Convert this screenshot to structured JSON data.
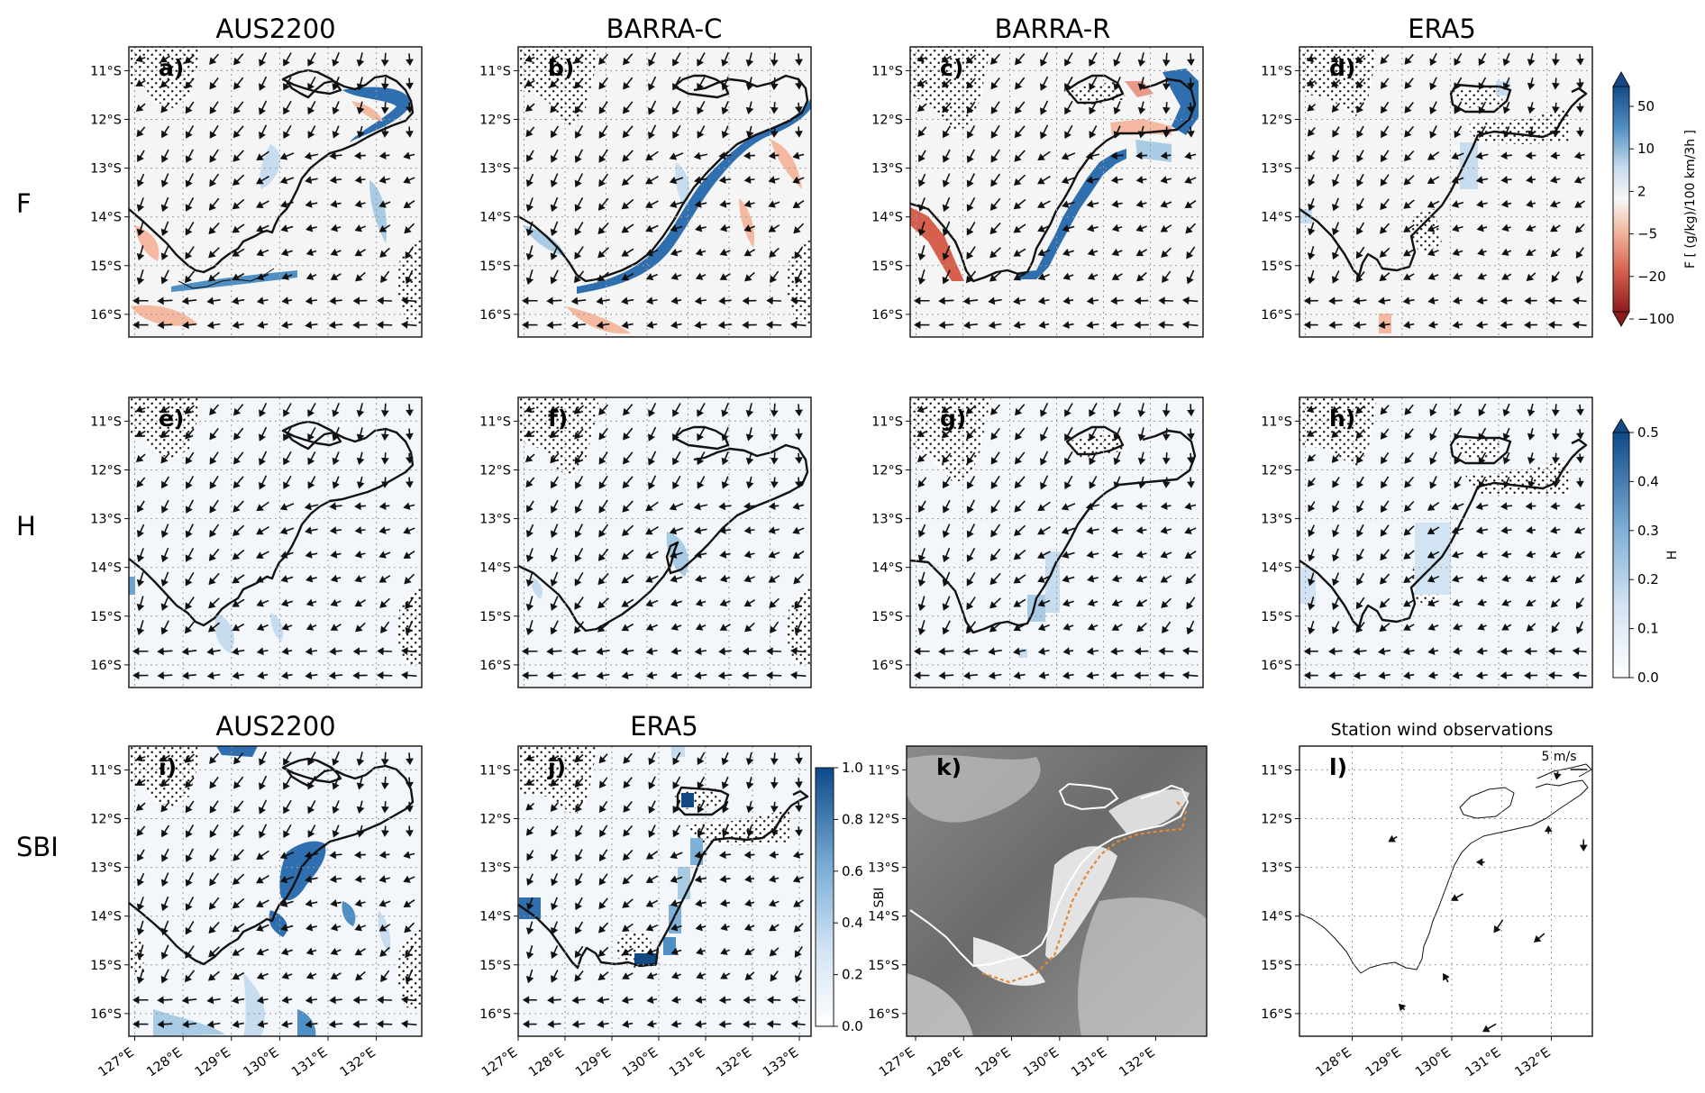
{
  "figure": {
    "row_labels": [
      "F",
      "H",
      "SBI"
    ],
    "lat_labels": [
      "11°S",
      "12°S",
      "13°S",
      "14°S",
      "15°S",
      "16°S"
    ],
    "lon_labels_a": [
      "127°E",
      "128°E",
      "129°E",
      "130°E",
      "131°E",
      "132°E"
    ],
    "lon_labels_b": [
      "127°E",
      "128°E",
      "129°E",
      "130°E",
      "131°E",
      "132°E",
      "133°E"
    ],
    "lon_labels_k": [
      "127°E",
      "128°E",
      "129°E",
      "130°E",
      "131°E",
      "132°E"
    ],
    "lon_labels_l": [
      "128°E",
      "129°E",
      "130°E",
      "131°E",
      "132°E"
    ],
    "panels": [
      {
        "id": "a",
        "letter": "a)",
        "title": "AUS2200",
        "row": "F"
      },
      {
        "id": "b",
        "letter": "b)",
        "title": "BARRA-C",
        "row": "F"
      },
      {
        "id": "c",
        "letter": "c)",
        "title": "BARRA-R",
        "row": "F"
      },
      {
        "id": "d",
        "letter": "d)",
        "title": "ERA5",
        "row": "F"
      },
      {
        "id": "e",
        "letter": "e)",
        "title": "",
        "row": "H"
      },
      {
        "id": "f",
        "letter": "f)",
        "title": "",
        "row": "H"
      },
      {
        "id": "g",
        "letter": "g)",
        "title": "",
        "row": "H"
      },
      {
        "id": "h",
        "letter": "h)",
        "title": "",
        "row": "H"
      },
      {
        "id": "i",
        "letter": "i)",
        "title": "AUS2200",
        "row": "SBI"
      },
      {
        "id": "j",
        "letter": "j)",
        "title": "ERA5",
        "row": "SBI"
      },
      {
        "id": "k",
        "letter": "k)",
        "title": "",
        "row": "SBI"
      },
      {
        "id": "l",
        "letter": "l)",
        "title": "Station wind observations",
        "row": "SBI"
      }
    ],
    "scale_arrow_label": "5 m/s",
    "colorbars": {
      "F": {
        "label": "F [ (g/kg)/100 km/3h ]",
        "ticks": [
          "50",
          "10",
          "2",
          "−5",
          "−20",
          "−100"
        ]
      },
      "H": {
        "label": "H",
        "ticks": [
          "0.5",
          "0.4",
          "0.3",
          "0.2",
          "0.1",
          "0.0"
        ]
      },
      "SBI": {
        "label": "SBI",
        "ticks": [
          "1.0",
          "0.8",
          "0.6",
          "0.4",
          "0.2",
          "0.0"
        ]
      }
    },
    "colors": {
      "positive": "#2f6fb0",
      "positive_light": "#a9cbe4",
      "negative": "#d6604d",
      "negative_light": "#f4b9a0",
      "ocean_fill": "#f5f5f5",
      "h_light": "#eef4fb"
    }
  }
}
